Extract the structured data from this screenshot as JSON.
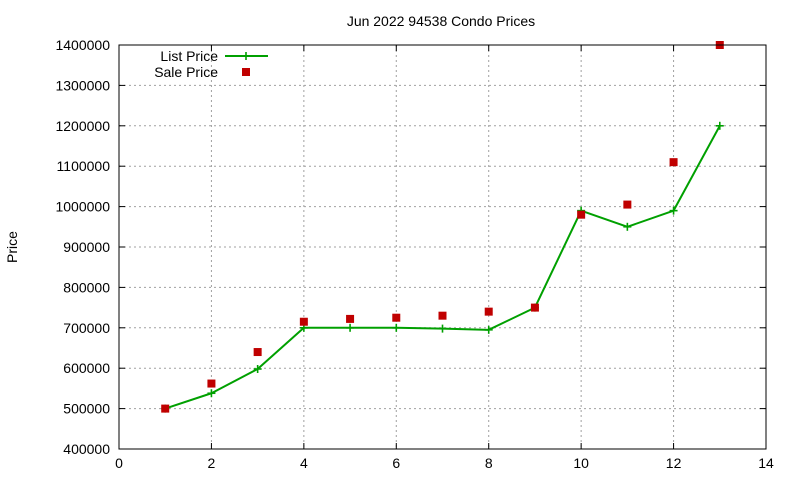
{
  "chart_data": {
    "type": "line",
    "title": "Jun 2022 94538 Condo Prices",
    "xlabel": "",
    "ylabel": "Price",
    "xlim": [
      0,
      14
    ],
    "ylim": [
      400000,
      1400000
    ],
    "xticks": [
      "0",
      "2",
      "4",
      "6",
      "8",
      "10",
      "12",
      "14"
    ],
    "yticks": [
      "400000",
      "500000",
      "600000",
      "700000",
      "800000",
      "900000",
      "1000000",
      "1100000",
      "1200000",
      "1300000",
      "1400000"
    ],
    "grid": true,
    "legend_position": "top-left",
    "series": [
      {
        "name": "List Price",
        "style": "line-with-plus-markers",
        "color": "#00a000",
        "x": [
          1,
          2,
          3,
          4,
          5,
          6,
          7,
          8,
          9,
          10,
          11,
          12,
          13
        ],
        "y": [
          500000,
          538000,
          598000,
          700000,
          700000,
          700000,
          698000,
          695000,
          750000,
          990000,
          950000,
          990000,
          1200000
        ]
      },
      {
        "name": "Sale Price",
        "style": "square-markers",
        "color": "#c00000",
        "x": [
          1,
          2,
          3,
          4,
          5,
          6,
          7,
          8,
          9,
          10,
          11,
          12,
          13
        ],
        "y": [
          500000,
          562000,
          640000,
          715000,
          722000,
          725000,
          730000,
          740000,
          750000,
          980000,
          1005000,
          1110000,
          1400000
        ]
      }
    ]
  }
}
